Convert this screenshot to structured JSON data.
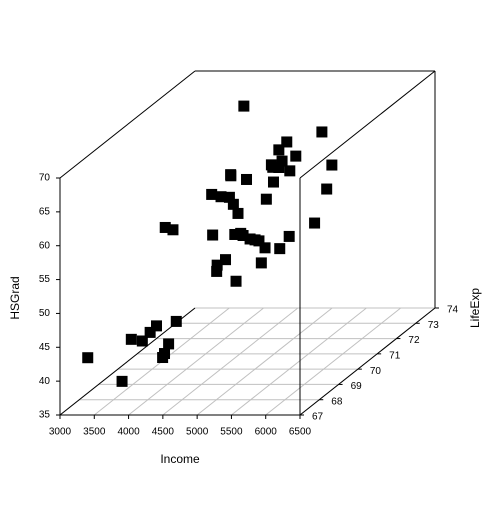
{
  "chart_data": {
    "type": "scatter3d",
    "xlabel": "Income",
    "ylabel": "LifeExp",
    "zlabel": "HSGrad",
    "x": [
      3624,
      6315,
      4530,
      3378,
      5114,
      4884,
      5348,
      4809,
      4815,
      4091,
      4963,
      4119,
      5107,
      4458,
      4628,
      4669,
      3712,
      3545,
      3694,
      5299,
      4755,
      4751,
      4675,
      3098,
      4254,
      4347,
      4508,
      5149,
      4281,
      5237,
      3601,
      4903,
      3875,
      5087,
      4561,
      3983,
      4660,
      4449,
      4558,
      3635,
      4167,
      3821,
      4188,
      4022,
      3907,
      4701,
      4864,
      3617,
      4468,
      4566
    ],
    "y": [
      69.05,
      69.31,
      70.55,
      70.66,
      71.71,
      72.06,
      72.48,
      70.06,
      70.66,
      68.54,
      73.6,
      71.87,
      70.14,
      70.88,
      72.56,
      72.58,
      70.1,
      68.76,
      70.39,
      70.22,
      71.83,
      70.63,
      72.96,
      68.09,
      70.69,
      70.56,
      72.6,
      69.03,
      71.23,
      70.93,
      70.32,
      70.55,
      69.21,
      72.78,
      70.82,
      71.42,
      72.13,
      70.43,
      71.9,
      67.96,
      72.08,
      70.11,
      70.9,
      72.9,
      71.64,
      70.08,
      71.72,
      69.48,
      72.48,
      70.29
    ],
    "z": [
      41.3,
      66.7,
      58.1,
      39.9,
      62.6,
      63.9,
      56,
      54.6,
      52.6,
      40.6,
      61.9,
      59.5,
      52.6,
      52.9,
      59,
      59.9,
      38.5,
      42.2,
      54.7,
      52.3,
      58.5,
      52.8,
      57.6,
      41,
      48.8,
      59.2,
      59.3,
      65.2,
      57.6,
      52.5,
      55.2,
      52.7,
      38.5,
      50.3,
      53.2,
      51.6,
      60,
      50.2,
      46.4,
      37.8,
      53.3,
      41.8,
      47.4,
      67.3,
      57.1,
      47.8,
      63.5,
      41.6,
      54.5,
      62.9
    ],
    "xlim": [
      3000,
      6500
    ],
    "xticks": [
      3000,
      3500,
      4000,
      4500,
      5000,
      5500,
      6000,
      6500
    ],
    "ylim": [
      67,
      74
    ],
    "yticks": [
      67,
      68,
      69,
      70,
      71,
      72,
      73,
      74
    ],
    "zlim": [
      35,
      70
    ],
    "zticks": [
      35,
      40,
      45,
      50,
      55,
      60,
      65,
      70
    ],
    "grid": true,
    "color": "#000000",
    "grid_color": "#c0c0c0"
  }
}
